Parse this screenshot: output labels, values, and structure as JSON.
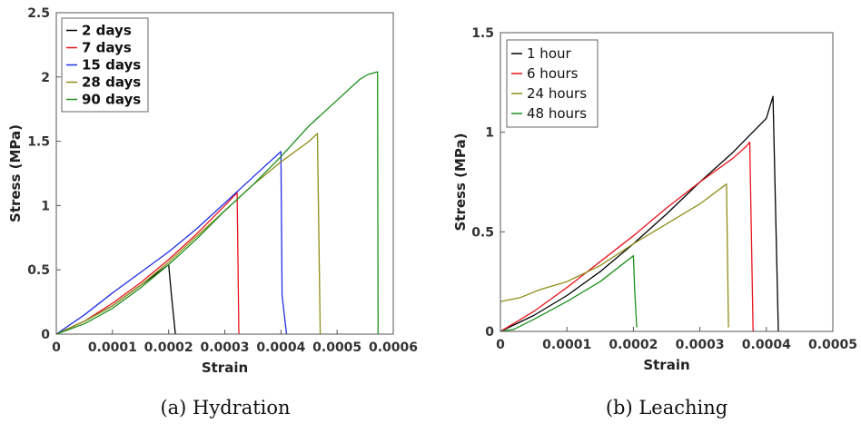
{
  "chart_data": [
    {
      "type": "line",
      "caption": "(a) Hydration",
      "xlabel": "Strain",
      "ylabel": "Stress (MPa)",
      "xlim": [
        0,
        0.0006
      ],
      "ylim": [
        0,
        2.5
      ],
      "xticks": [
        0,
        0.0001,
        0.0002,
        0.0003,
        0.0004,
        0.0005,
        0.0006
      ],
      "xtick_labels": [
        "0",
        "0.0001",
        "0.0002",
        "0.0003",
        "0.0004",
        "0.0005",
        "0.0006"
      ],
      "yticks": [
        0,
        0.5,
        1,
        1.5,
        2,
        2.5
      ],
      "ytick_labels": [
        "0",
        "0.5",
        "1",
        "1.5",
        "2",
        "2.5"
      ],
      "legend_position": "top-left",
      "series": [
        {
          "name": "2 days",
          "color": "#000000",
          "x": [
            0,
            5e-05,
            0.0001,
            0.00015,
            0.0002,
            0.000205,
            0.000212
          ],
          "y": [
            0,
            0.1,
            0.22,
            0.38,
            0.54,
            0.3,
            0
          ]
        },
        {
          "name": "7 days",
          "color": "#e8141c",
          "x": [
            0,
            5e-05,
            0.0001,
            0.00015,
            0.0002,
            0.00025,
            0.0003,
            0.000322,
            0.000325
          ],
          "y": [
            0,
            0.1,
            0.24,
            0.4,
            0.58,
            0.78,
            1.0,
            1.1,
            0
          ]
        },
        {
          "name": "15 days",
          "color": "#1f2ee6",
          "x": [
            0,
            5e-05,
            0.0001,
            0.00015,
            0.0002,
            0.00025,
            0.0003,
            0.00035,
            0.0004,
            0.000402,
            0.00041
          ],
          "y": [
            0,
            0.15,
            0.32,
            0.48,
            0.64,
            0.82,
            1.02,
            1.22,
            1.42,
            0.3,
            0
          ]
        },
        {
          "name": "28 days",
          "color": "#8e8e18",
          "x": [
            0,
            5e-05,
            0.0001,
            0.00015,
            0.0002,
            0.00025,
            0.0003,
            0.00035,
            0.0004,
            0.00045,
            0.000465,
            0.00047
          ],
          "y": [
            0,
            0.1,
            0.22,
            0.38,
            0.56,
            0.76,
            0.96,
            1.16,
            1.34,
            1.5,
            1.56,
            0
          ]
        },
        {
          "name": "90 days",
          "color": "#1e8f1e",
          "x": [
            0,
            5e-05,
            0.0001,
            0.00015,
            0.0002,
            0.00025,
            0.0003,
            0.00035,
            0.0004,
            0.00045,
            0.0005,
            0.00054,
            0.000555,
            0.000572,
            0.000573
          ],
          "y": [
            0,
            0.08,
            0.2,
            0.36,
            0.54,
            0.74,
            0.96,
            1.16,
            1.38,
            1.62,
            1.82,
            1.98,
            2.02,
            2.04,
            0
          ]
        }
      ]
    },
    {
      "type": "line",
      "caption": "(b) Leaching",
      "xlabel": "Strain",
      "ylabel": "Stress (MPa)",
      "xlim": [
        0,
        0.0005
      ],
      "ylim": [
        0,
        1.5
      ],
      "xticks": [
        0,
        0.0001,
        0.0002,
        0.0003,
        0.0004,
        0.0005
      ],
      "xtick_labels": [
        "0",
        "0.0001",
        "0.0002",
        "0.0003",
        "0.0004",
        "0.0005"
      ],
      "yticks": [
        0,
        0.5,
        1,
        1.5
      ],
      "ytick_labels": [
        "0",
        "0.5",
        "1",
        "1.5"
      ],
      "legend_position": "top-left",
      "series": [
        {
          "name": "1 hour",
          "color": "#000000",
          "x": [
            0,
            5e-05,
            0.0001,
            0.00015,
            0.0002,
            0.00025,
            0.0003,
            0.00035,
            0.0004,
            0.00041,
            0.000418
          ],
          "y": [
            0,
            0.08,
            0.18,
            0.3,
            0.44,
            0.59,
            0.75,
            0.9,
            1.07,
            1.18,
            0
          ]
        },
        {
          "name": "6 hours",
          "color": "#e8141c",
          "x": [
            0,
            5e-05,
            0.0001,
            0.00015,
            0.0002,
            0.00025,
            0.0003,
            0.00035,
            0.00037,
            0.000375,
            0.00038
          ],
          "y": [
            0,
            0.1,
            0.22,
            0.35,
            0.48,
            0.62,
            0.75,
            0.87,
            0.93,
            0.95,
            0
          ]
        },
        {
          "name": "24 hours",
          "color": "#8e8e18",
          "x": [
            0,
            3e-05,
            6e-05,
            0.0001,
            0.00015,
            0.0002,
            0.00025,
            0.0003,
            0.00034,
            0.000343
          ],
          "y": [
            0.15,
            0.17,
            0.21,
            0.25,
            0.33,
            0.44,
            0.54,
            0.64,
            0.74,
            0.02
          ]
        },
        {
          "name": "48 hours",
          "color": "#1e8f1e",
          "x": [
            0,
            2e-05,
            5e-05,
            0.0001,
            0.00015,
            0.0002,
            0.000202,
            0.000205
          ],
          "y": [
            0,
            0.01,
            0.06,
            0.15,
            0.25,
            0.38,
            0.2,
            0.02
          ]
        }
      ]
    }
  ]
}
